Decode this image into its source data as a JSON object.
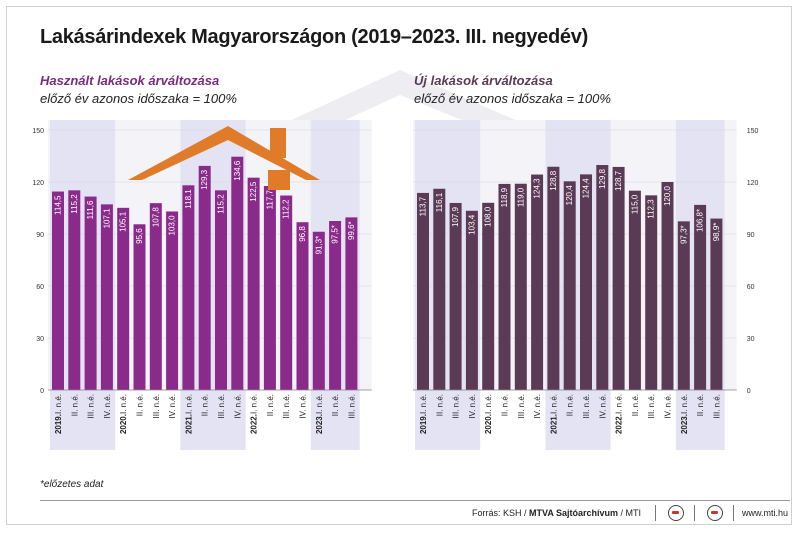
{
  "title": "Lakásárindexek Magyarországon (2019–2023. III. negyedév)",
  "panels": [
    {
      "title": "Használt lakások árváltozása",
      "subtitle": "előző év azonos időszaka = 100%"
    },
    {
      "title": "Új lakások árváltozása",
      "subtitle": "előző év azonos időszaka = 100%"
    }
  ],
  "footnote": "*előzetes adat",
  "footer": {
    "source_prefix": "Forrás: KSH / ",
    "source_bold": "MTVA Sajtóarchívum",
    "source_suffix": " / MTI",
    "url": "www.mti.hu"
  },
  "colors": {
    "used": "#8a2a8a",
    "used_title": "#7b2a7f",
    "new": "#5b3a55",
    "new_title": "#5b3a55",
    "highlight": "#e3e3f4",
    "roof": "#e07b2a"
  },
  "icons": [
    "house-roof-icon",
    "mti-logo-icon"
  ],
  "chart_data": [
    {
      "type": "bar",
      "title": "Használt lakások árváltozása",
      "subtitle": "előző év azonos időszaka = 100%",
      "categories": [
        "2019.I. n.é.",
        "II. n.é.",
        "III. n.é.",
        "IV. n.é.",
        "2020.I. n.é.",
        "II. n.é.",
        "III. n.é.",
        "IV. n.é.",
        "2021.I. n.é.",
        "II. n.é.",
        "III. n.é.",
        "IV. n.é.",
        "2022.I. n.é.",
        "II. n.é.",
        "III. n.é.",
        "IV. n.é.",
        "2023.I. n.é.",
        "II. n.é.",
        "III. n.é."
      ],
      "values": [
        114.5,
        115.2,
        111.6,
        107.1,
        105.1,
        95.6,
        107.8,
        103.0,
        118.1,
        129.3,
        115.2,
        134.6,
        122.5,
        117.7,
        112.2,
        96.8,
        91.3,
        97.5,
        99.6
      ],
      "labels": [
        "114,5",
        "115,2",
        "111,6",
        "107,1",
        "105,1",
        "95,6",
        "107,8",
        "103,0",
        "118,1",
        "129,3",
        "115,2",
        "134,6",
        "122,5",
        "117,7",
        "112,2",
        "96,8",
        "91,3*",
        "97,5*",
        "99,6*"
      ],
      "yticks": [
        "0",
        "30",
        "60",
        "90",
        "120",
        "150"
      ],
      "ylim": [
        0,
        150
      ],
      "highlighted_years": [
        "2019",
        "2021",
        "2023"
      ],
      "color": "#8a2a8a"
    },
    {
      "type": "bar",
      "title": "Új lakások árváltozása",
      "subtitle": "előző év azonos időszaka = 100%",
      "categories": [
        "2019.I. n.é.",
        "II. n.é.",
        "III. n.é.",
        "IV. n.é.",
        "2020.I. n.é.",
        "II. n.é.",
        "III. n.é.",
        "IV. n.é.",
        "2021.I. n.é.",
        "II. n.é.",
        "III. n.é.",
        "IV. n.é.",
        "2022.I. n.é.",
        "II. n.é.",
        "III. n.é.",
        "IV. n.é.",
        "2023.I. n.é.",
        "II. n.é.",
        "III. n.é."
      ],
      "values": [
        113.7,
        116.1,
        107.9,
        103.4,
        108.0,
        118.9,
        119.0,
        124.3,
        128.8,
        120.4,
        124.4,
        129.8,
        128.7,
        115.0,
        112.3,
        120.0,
        97.3,
        106.8,
        98.9
      ],
      "labels": [
        "113,7",
        "116,1",
        "107,9",
        "103,4",
        "108,0",
        "118,9",
        "119,0",
        "124,3",
        "128,8",
        "120,4",
        "124,4",
        "129,8",
        "128,7",
        "115,0",
        "112,3",
        "120,0",
        "97,3*",
        "106,8*",
        "98,9*"
      ],
      "yticks": [
        "0",
        "30",
        "60",
        "90",
        "120",
        "150"
      ],
      "ylim": [
        0,
        150
      ],
      "highlighted_years": [
        "2019",
        "2021",
        "2023"
      ],
      "color": "#5b3a55"
    }
  ]
}
